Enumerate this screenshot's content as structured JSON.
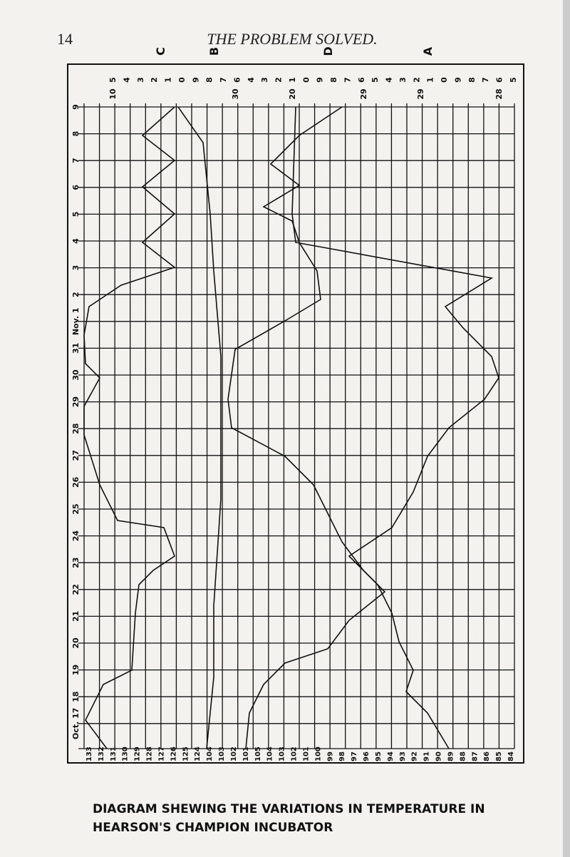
{
  "header": {
    "page_number": "14",
    "title": "THE PROBLEM SOLVED."
  },
  "column_letters": [
    "C",
    "B",
    "D",
    "A"
  ],
  "top_scale": {
    "digits": [
      "5",
      "4",
      "3",
      "2",
      "1",
      "0",
      "9",
      "8",
      "7",
      "6",
      "4",
      "3",
      "2",
      "1",
      "0",
      "9",
      "8",
      "7",
      "6",
      "5",
      "4",
      "3",
      "2",
      "1",
      "0",
      "9",
      "8",
      "7",
      "6",
      "5"
    ],
    "tens": [
      "10",
      "30",
      "20",
      "29",
      "29",
      "28"
    ]
  },
  "day_labels": [
    "9",
    "8",
    "7",
    "6",
    "5",
    "4",
    "3",
    "2",
    "Nov. 1",
    "31",
    "30",
    "29",
    "28",
    "27",
    "26",
    "25",
    "24",
    "23",
    "22",
    "21",
    "20",
    "19",
    "18",
    "Oct. 17"
  ],
  "bottom_scale": [
    "133",
    "132",
    "131",
    "130",
    "129",
    "128",
    "127",
    "126",
    "125",
    "124",
    "104",
    "103",
    "102",
    "101",
    "105",
    "104",
    "103",
    "102",
    "101",
    "100",
    "99",
    "98",
    "97",
    "96",
    "95",
    "94",
    "93",
    "92",
    "91",
    "90",
    "89",
    "88",
    "87",
    "86",
    "85",
    "84"
  ],
  "caption": {
    "line1": "DIAGRAM SHEWING THE VARIATIONS IN TEMPERATURE IN",
    "line2": "HEARSON'S CHAMPION INCUBATOR"
  }
}
